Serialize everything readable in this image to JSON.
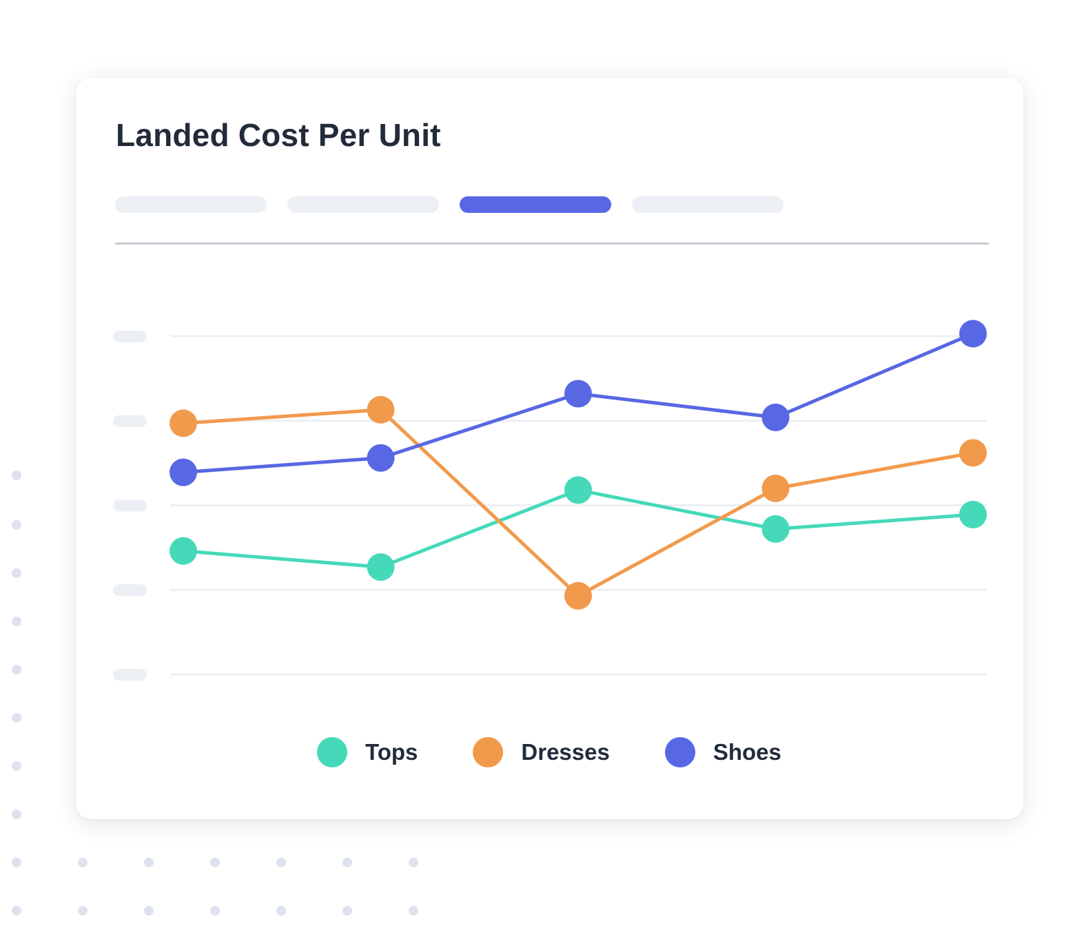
{
  "card": {
    "title": "Landed Cost Per Unit"
  },
  "tabs": [
    {
      "label": "",
      "active": false
    },
    {
      "label": "",
      "active": false
    },
    {
      "label": "",
      "active": true
    },
    {
      "label": "",
      "active": false
    }
  ],
  "colors": {
    "accent": "#5867e3",
    "tops": "#45d9b9",
    "dresses": "#f29a4c",
    "shoes": "#5867e3",
    "gridline": "#eceff3",
    "placeholder": "#ecf0f4",
    "decor_dots": "#dde2ee"
  },
  "chart_data": {
    "type": "line",
    "title": "Landed Cost Per Unit",
    "xlabel": "",
    "ylabel": "",
    "x": [
      1,
      2,
      3,
      4,
      5
    ],
    "ylim": [
      0,
      4
    ],
    "y_ticks": [
      0,
      1,
      2,
      3,
      4
    ],
    "y_tick_labels_visible": false,
    "grid": true,
    "legend": "bottom",
    "series": [
      {
        "name": "Tops",
        "color": "#45d9b9",
        "values": [
          1.46,
          1.27,
          2.18,
          1.72,
          1.89
        ]
      },
      {
        "name": "Dresses",
        "color": "#f29a4c",
        "values": [
          2.97,
          3.13,
          0.93,
          2.2,
          2.62
        ]
      },
      {
        "name": "Shoes",
        "color": "#5867e3",
        "values": [
          2.39,
          2.56,
          3.32,
          3.04,
          4.03
        ]
      }
    ]
  }
}
